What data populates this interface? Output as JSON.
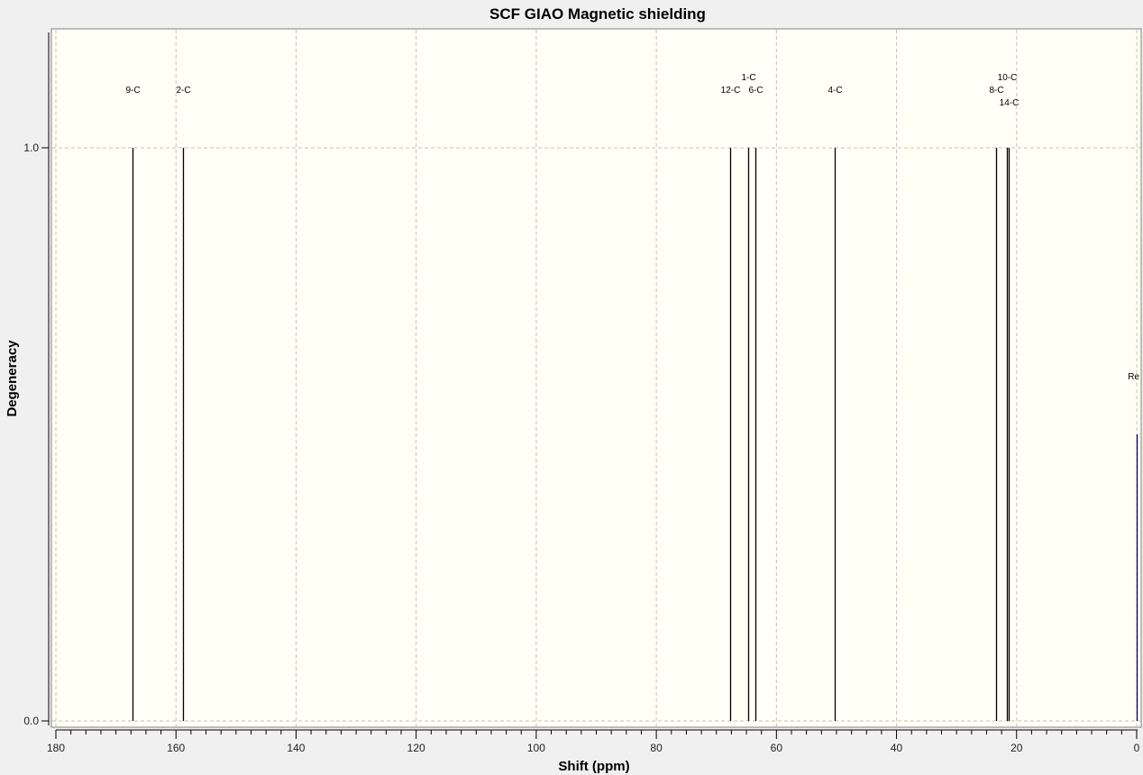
{
  "chart_data": {
    "type": "bar",
    "title": "SCF GIAO Magnetic shielding",
    "xlabel": "Shift (ppm)",
    "ylabel": "Degeneracy",
    "xlim": [
      180,
      0
    ],
    "ylim": [
      0,
      1.2
    ],
    "x_reversed": true,
    "grid": true,
    "x_ticks": [
      180,
      160,
      140,
      120,
      100,
      80,
      60,
      40,
      20,
      0
    ],
    "x_tick_labels": [
      "180",
      "160",
      "140",
      "120",
      "100",
      "80",
      "60",
      "40",
      "20",
      "0"
    ],
    "y_ticks": [
      0,
      1
    ],
    "y_tick_labels": [
      "0.0",
      "1.0"
    ],
    "peaks": [
      {
        "label": "9-C",
        "shift": 167.2,
        "degeneracy": 1
      },
      {
        "label": "2-C",
        "shift": 158.8,
        "degeneracy": 1
      },
      {
        "label": "12-C",
        "shift": 67.7,
        "degeneracy": 1
      },
      {
        "label": "1-C",
        "shift": 64.7,
        "degeneracy": 1
      },
      {
        "label": "6-C",
        "shift": 63.5,
        "degeneracy": 1
      },
      {
        "label": "4-C",
        "shift": 50.3,
        "degeneracy": 1
      },
      {
        "label": "8-C",
        "shift": 23.4,
        "degeneracy": 1
      },
      {
        "label": "10-C",
        "shift": 21.6,
        "degeneracy": 1
      },
      {
        "label": "14-C",
        "shift": 21.3,
        "degeneracy": 1
      },
      {
        "label": "Re",
        "shift": 0.0,
        "degeneracy": 0.5,
        "reference": true
      }
    ],
    "colors": {
      "peak": "#000000",
      "reference": "#000080",
      "plot_background": "#fffff5",
      "grid": "#c0c0c0"
    }
  }
}
